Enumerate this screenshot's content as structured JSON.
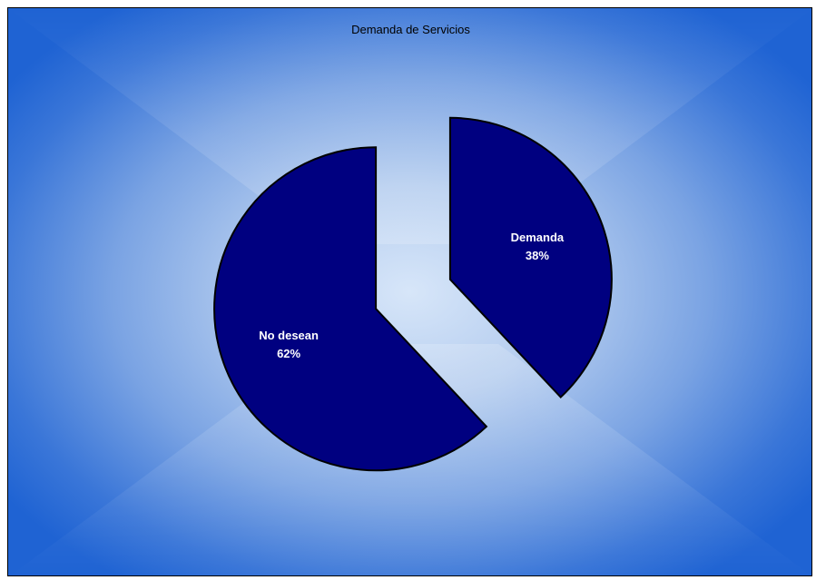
{
  "chart_data": {
    "type": "pie",
    "title": "Demanda de Servicios",
    "exploded": true,
    "slices": [
      {
        "label": "Demanda",
        "value": 38,
        "value_label": "38%"
      },
      {
        "label": "No desean",
        "value": 62,
        "value_label": "62%"
      }
    ],
    "colors": {
      "slice_fill": "#000080",
      "slice_stroke": "#000000",
      "background_center": "#d7e6f9",
      "background_edge": "#1f63d3"
    }
  }
}
